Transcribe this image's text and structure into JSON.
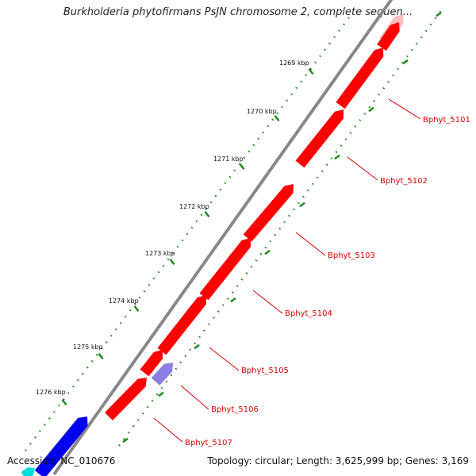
{
  "title": "Burkholderia phytofirmans PsJN chromosome 2, complete sequen...",
  "footer": {
    "accession": "Accession: NC_010676",
    "summary": "Topology: circular; Length: 3,625,999 bp; Genes: 3,169"
  },
  "colors": {
    "backbone": "#888888",
    "forward_gene": "#ff0000",
    "reverse_gene": "#0000ee",
    "rna_gene": "#7766dd",
    "label": "#d40000",
    "tick_minor": "#1a8a1a"
  },
  "kbp_ticks": [
    "1269 kbp",
    "1270 kbp",
    "1271 kbp",
    "1272 kbp",
    "1273 kbp",
    "1274 kbp",
    "1275 kbp",
    "1276 kbp"
  ],
  "gene_labels": [
    "Bphyt_5101",
    "Bphyt_5102",
    "Bphyt_5103",
    "Bphyt_5104",
    "Bphyt_5105",
    "Bphyt_5106",
    "Bphyt_5107"
  ]
}
